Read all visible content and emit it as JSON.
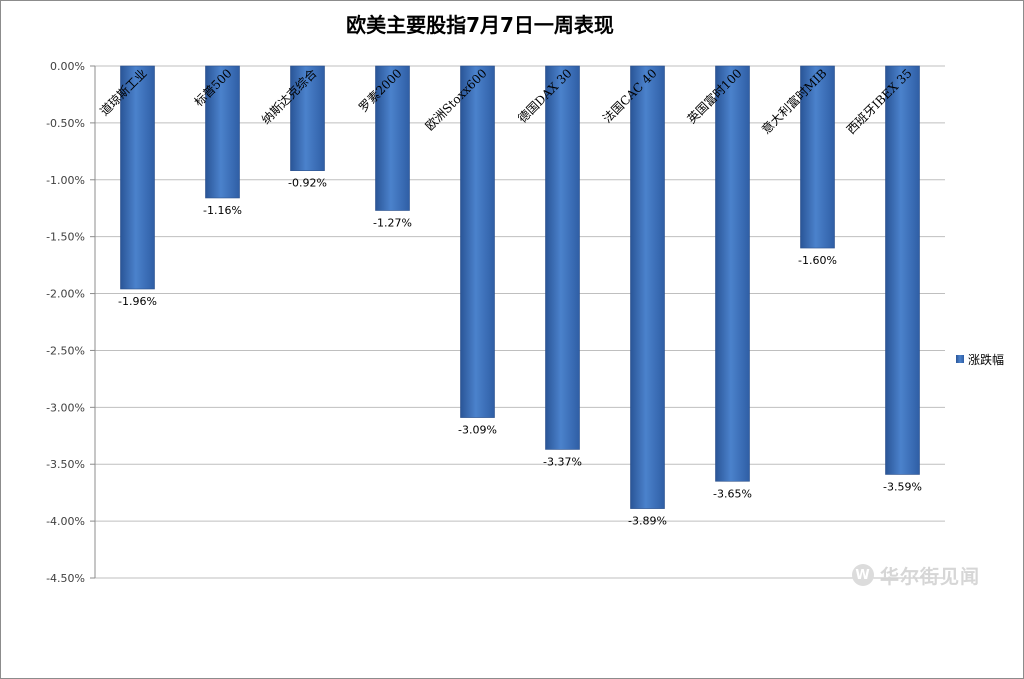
{
  "chart_data": {
    "type": "bar",
    "title": "欧美主要股指7月7日一周表现",
    "categories": [
      "道琼斯工业",
      "标普500",
      "纳斯达克综合",
      "罗素2000",
      "欧洲Stoxx600",
      "德国DAX 30",
      "法国CAC 40",
      "英国富时100",
      "意大利富时MIB",
      "西班牙IBEX 35"
    ],
    "series": [
      {
        "name": "涨跌幅",
        "values": [
          -1.96,
          -1.16,
          -0.92,
          -1.27,
          -3.09,
          -3.37,
          -3.89,
          -3.65,
          -1.6,
          -3.59
        ],
        "labels": [
          "-1.96%",
          "-1.16%",
          "-0.92%",
          "-1.27%",
          "-3.09%",
          "-3.37%",
          "-3.89%",
          "-3.65%",
          "-1.60%",
          "-3.59%"
        ]
      }
    ],
    "yticks": [
      0,
      -0.5,
      -1.0,
      -1.5,
      -2.0,
      -2.5,
      -3.0,
      -3.5,
      -4.0,
      -4.5
    ],
    "ytick_labels": [
      "0.00%",
      "-0.50%",
      "-1.00%",
      "-1.50%",
      "-2.00%",
      "-2.50%",
      "-3.00%",
      "-3.50%",
      "-4.00%",
      "-4.50%"
    ],
    "ylim": [
      -4.5,
      0
    ],
    "grid": true,
    "legend_position": "right",
    "bar_color": "#3d6db5",
    "xlabel": "",
    "ylabel": ""
  },
  "watermark": {
    "text": "华尔街见闻",
    "icon": "w-logo-icon"
  }
}
